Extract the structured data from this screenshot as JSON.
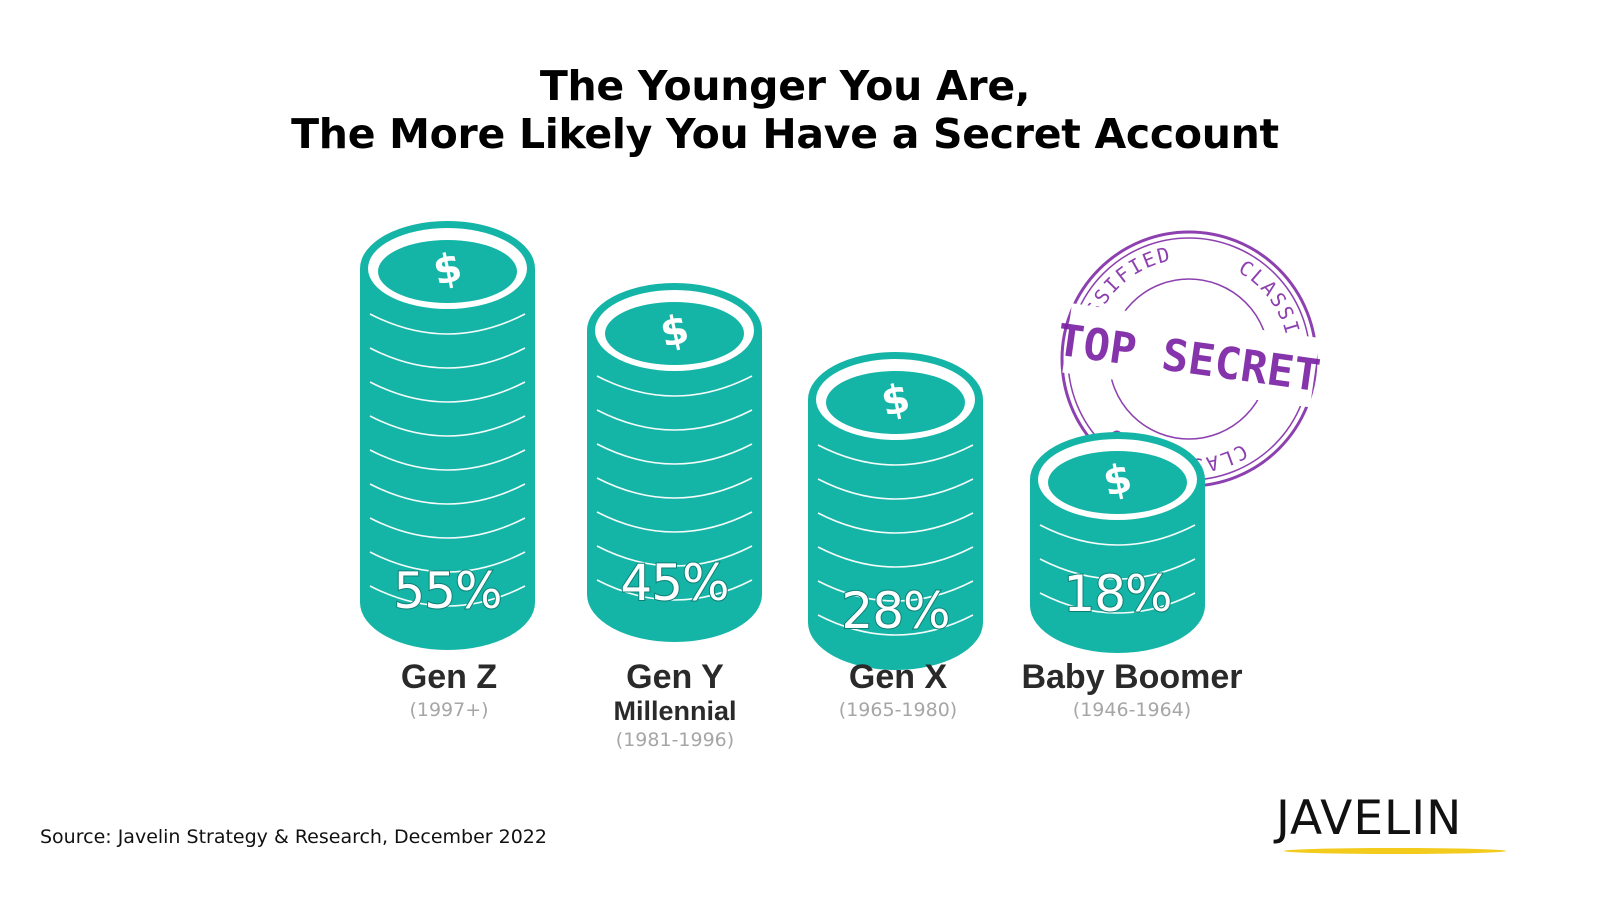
{
  "title": {
    "line1": "The Younger You Are,",
    "line2": "The More Likely You Have a Secret Account"
  },
  "colors": {
    "coin": "#14b5a6",
    "coin_line": "#ffffff",
    "pct_outline": "#0d7f75",
    "stamp": "#7a1fa2",
    "logo_underline": "#f2cb1d",
    "label_text": "#2a2a2a",
    "years_text": "#a6a6a6"
  },
  "stamp": {
    "ring_text": "CLASSIFIED",
    "center_text": "TOP SECRET"
  },
  "categories": [
    {
      "name": "Gen Z",
      "subname": "",
      "years": "(1997+)",
      "value_label": "55%",
      "icon": "dollar-sign-icon"
    },
    {
      "name": "Gen Y",
      "subname": "Millennial",
      "years": "(1981-1996)",
      "value_label": "45%",
      "icon": "dollar-sign-icon"
    },
    {
      "name": "Gen X",
      "subname": "",
      "years": "(1965-1980)",
      "value_label": "28%",
      "icon": "dollar-sign-icon"
    },
    {
      "name": "Baby Boomer",
      "subname": "",
      "years": "(1946-1964)",
      "value_label": "18%",
      "icon": "dollar-sign-icon"
    }
  ],
  "source": "Source: Javelin Strategy & Research, December 2022",
  "logo": {
    "text": "JAVELIN"
  },
  "chart_data": {
    "type": "bar",
    "title": "The Younger You Are, The More Likely You Have a Secret Account",
    "categories": [
      "Gen Z (1997+)",
      "Gen Y Millennial (1981-1996)",
      "Gen X (1965-1980)",
      "Baby Boomer (1946-1964)"
    ],
    "values": [
      55,
      45,
      28,
      18
    ],
    "unit": "%",
    "xlabel": "",
    "ylabel": "",
    "grid": false,
    "legend": null,
    "annotations": [
      "TOP SECRET / CLASSIFIED stamp"
    ],
    "style": "pictograph coin stacks"
  }
}
